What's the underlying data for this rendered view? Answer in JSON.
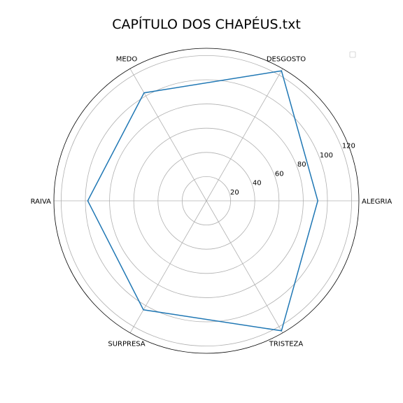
{
  "chart_data": {
    "type": "radar",
    "title": "CAPÍTULO DOS CHAPÉUS.txt",
    "categories": [
      "ALEGRIA",
      "DESGOSTO",
      "MEDO",
      "RAIVA",
      "SURPRESA",
      "TRISTEZA"
    ],
    "series": [
      {
        "values": [
          92,
          124,
          103,
          98,
          104,
          124
        ],
        "color": "#1f77b4"
      }
    ],
    "radial_ticks": [
      20,
      40,
      60,
      80,
      100,
      120
    ],
    "rlim": [
      0,
      126
    ],
    "grid": true,
    "legend": "top-right"
  }
}
